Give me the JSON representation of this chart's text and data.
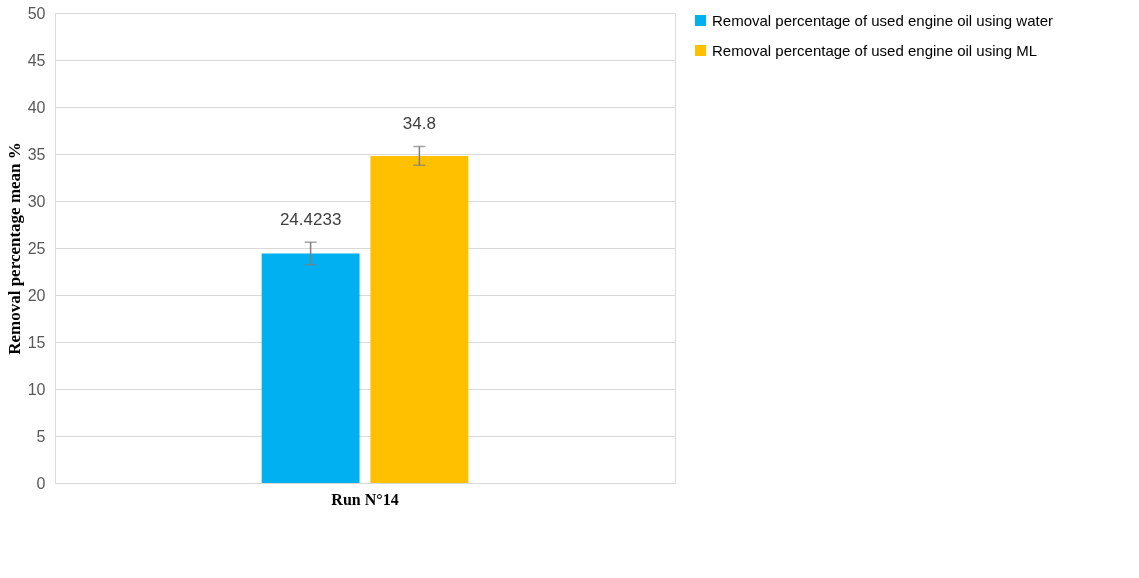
{
  "chart_data": {
    "type": "bar",
    "ylabel": "Removal percentage mean %",
    "categories": [
      "Run N°14"
    ],
    "series": [
      {
        "name": "Removal percentage of used engine oil  using water",
        "color": "#00b0f0",
        "values": [
          24.4233
        ],
        "errors": [
          1.2
        ]
      },
      {
        "name": "Removal percentage of used engine oil  using ML",
        "color": "#ffc000",
        "values": [
          34.8
        ],
        "errors": [
          1.0
        ]
      }
    ],
    "ylim": [
      0,
      50
    ],
    "yticks": [
      0,
      5,
      10,
      15,
      20,
      25,
      30,
      35,
      40,
      45,
      50
    ],
    "grid": "y",
    "data_labels": true,
    "legend": "right"
  }
}
